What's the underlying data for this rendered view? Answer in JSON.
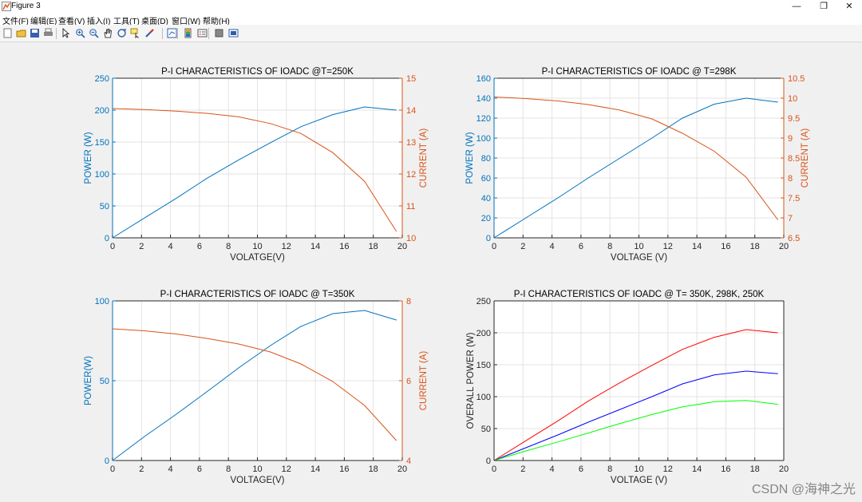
{
  "window": {
    "title": "Figure 3",
    "controls": {
      "minimize": "—",
      "maximize": "❐",
      "close": "✕"
    }
  },
  "menu": {
    "items": [
      "文件(F)",
      "编辑(E)",
      "查看(V)",
      "插入(I)",
      "工具(T)",
      "桌面(D)",
      "窗口(W)",
      "帮助(H)"
    ]
  },
  "toolbar": {
    "icons": [
      "new-figure-icon",
      "open-file-icon",
      "save-icon",
      "print-icon",
      "select-arrow-icon",
      "zoom-in-icon",
      "zoom-out-icon",
      "pan-icon",
      "rotate-3d-icon",
      "data-cursor-icon",
      "brush-icon",
      "link-plot-icon",
      "colorbar-icon",
      "legend-icon",
      "hide-plot-tools-icon",
      "show-plot-tools-icon"
    ]
  },
  "colors": {
    "left_axis": "#0072bd",
    "right_axis": "#d95319",
    "red": "#ff0000",
    "blue": "#0000ff",
    "green": "#00ff00"
  },
  "watermark": "CSDN @海神之光",
  "chart_data": [
    {
      "type": "line",
      "title": "P-I CHARACTERISTICS OF IOADC @T=250K",
      "xlabel": "VOLATGE(V)",
      "ylabel": "POWER (W)",
      "y2label": "CURRENT (A)",
      "xlim": [
        0,
        20
      ],
      "ylim": [
        0,
        250
      ],
      "y2lim": [
        10,
        15
      ],
      "xticks": [
        "0",
        "2",
        "4",
        "6",
        "8",
        "10",
        "12",
        "14",
        "16",
        "18",
        "20"
      ],
      "yticks": [
        "0",
        "50",
        "100",
        "150",
        "200",
        "250"
      ],
      "y2ticks": [
        "10",
        "11",
        "12",
        "13",
        "14",
        "15"
      ],
      "grid": true,
      "series": [
        {
          "axis": "left",
          "color": "#0072bd",
          "x": [
            0,
            2.2,
            4.4,
            6.5,
            8.7,
            10.9,
            13.0,
            15.2,
            17.4,
            19.6
          ],
          "y": [
            0,
            31,
            62,
            93,
            122,
            149,
            174,
            193,
            205,
            200
          ]
        },
        {
          "axis": "right",
          "color": "#d95319",
          "x": [
            0,
            2.2,
            4.4,
            6.5,
            8.7,
            10.9,
            13.0,
            15.2,
            17.4,
            19.6
          ],
          "y": [
            14.05,
            14.02,
            13.97,
            13.9,
            13.79,
            13.58,
            13.27,
            12.67,
            11.77,
            10.2
          ]
        }
      ]
    },
    {
      "type": "line",
      "title": "P-I CHARACTERISTICS OF IOADC @ T=298K",
      "xlabel": "VOLTAGE (V)",
      "ylabel": "POWER (W)",
      "y2label": "CURRENT (A)",
      "xlim": [
        0,
        20
      ],
      "ylim": [
        0,
        160
      ],
      "y2lim": [
        6.5,
        10.5
      ],
      "xticks": [
        "0",
        "2",
        "4",
        "6",
        "8",
        "10",
        "12",
        "14",
        "16",
        "18",
        "20"
      ],
      "yticks": [
        "0",
        "20",
        "40",
        "60",
        "80",
        "100",
        "120",
        "140",
        "160"
      ],
      "y2ticks": [
        "6.5",
        "7",
        "7.5",
        "8",
        "8.5",
        "9",
        "9.5",
        "10",
        "10.5"
      ],
      "grid": true,
      "series": [
        {
          "axis": "left",
          "color": "#0072bd",
          "x": [
            0,
            2.2,
            4.4,
            6.5,
            8.7,
            10.9,
            13.0,
            15.2,
            17.4,
            19.6
          ],
          "y": [
            0,
            20,
            40,
            60,
            80,
            100,
            120,
            134,
            140,
            136
          ]
        },
        {
          "axis": "right",
          "color": "#d95319",
          "x": [
            0,
            2.2,
            4.4,
            6.5,
            8.7,
            10.9,
            13.0,
            15.2,
            17.4,
            19.6
          ],
          "y": [
            10.03,
            9.99,
            9.93,
            9.84,
            9.7,
            9.48,
            9.12,
            8.67,
            8.02,
            6.95
          ]
        }
      ]
    },
    {
      "type": "line",
      "title": "P-I CHARACTERISTICS OF IOADC @ T=350K",
      "xlabel": "VOLTAGE(V)",
      "ylabel": "POWER(W)",
      "y2label": "CURRENT (A)",
      "xlim": [
        0,
        20
      ],
      "ylim": [
        0,
        100
      ],
      "y2lim": [
        4,
        8
      ],
      "xticks": [
        "0",
        "2",
        "4",
        "6",
        "8",
        "10",
        "12",
        "14",
        "16",
        "18",
        "20"
      ],
      "yticks": [
        "0",
        "50",
        "100"
      ],
      "y2ticks": [
        "4",
        "6",
        "8"
      ],
      "grid": true,
      "series": [
        {
          "axis": "left",
          "color": "#0072bd",
          "x": [
            0,
            2.2,
            4.4,
            6.5,
            8.7,
            10.9,
            13.0,
            15.2,
            17.4,
            19.6
          ],
          "y": [
            0,
            15,
            29,
            43,
            58,
            72,
            84,
            92,
            94,
            88
          ]
        },
        {
          "axis": "right",
          "color": "#d95319",
          "x": [
            0,
            2.2,
            4.4,
            6.5,
            8.7,
            10.9,
            13.0,
            15.2,
            17.4,
            19.6
          ],
          "y": [
            7.3,
            7.25,
            7.17,
            7.06,
            6.92,
            6.72,
            6.42,
            5.98,
            5.38,
            4.5
          ]
        }
      ]
    },
    {
      "type": "line",
      "title": "P-I CHARACTERISTICS OF IOADC @ T= 350K, 298K, 250K",
      "xlabel": "VOLTAGE (V)",
      "ylabel": "OVERALL POWER (W)",
      "xlim": [
        0,
        20
      ],
      "ylim": [
        0,
        250
      ],
      "xticks": [
        "0",
        "2",
        "4",
        "6",
        "8",
        "10",
        "12",
        "14",
        "16",
        "18",
        "20"
      ],
      "yticks": [
        "0",
        "50",
        "100",
        "150",
        "200",
        "250"
      ],
      "grid": true,
      "series": [
        {
          "axis": "left",
          "color": "#ff0000",
          "x": [
            0,
            2.2,
            4.4,
            6.5,
            8.7,
            10.9,
            13.0,
            15.2,
            17.4,
            19.6
          ],
          "y": [
            0,
            31,
            62,
            93,
            122,
            149,
            174,
            193,
            205,
            200
          ]
        },
        {
          "axis": "left",
          "color": "#0000ff",
          "x": [
            0,
            2.2,
            4.4,
            6.5,
            8.7,
            10.9,
            13.0,
            15.2,
            17.4,
            19.6
          ],
          "y": [
            0,
            20,
            40,
            60,
            80,
            100,
            120,
            134,
            140,
            136
          ]
        },
        {
          "axis": "left",
          "color": "#00ff00",
          "x": [
            0,
            2.2,
            4.4,
            6.5,
            8.7,
            10.9,
            13.0,
            15.2,
            17.4,
            19.6
          ],
          "y": [
            0,
            15,
            29,
            43,
            58,
            72,
            84,
            92,
            94,
            88
          ]
        }
      ]
    }
  ]
}
